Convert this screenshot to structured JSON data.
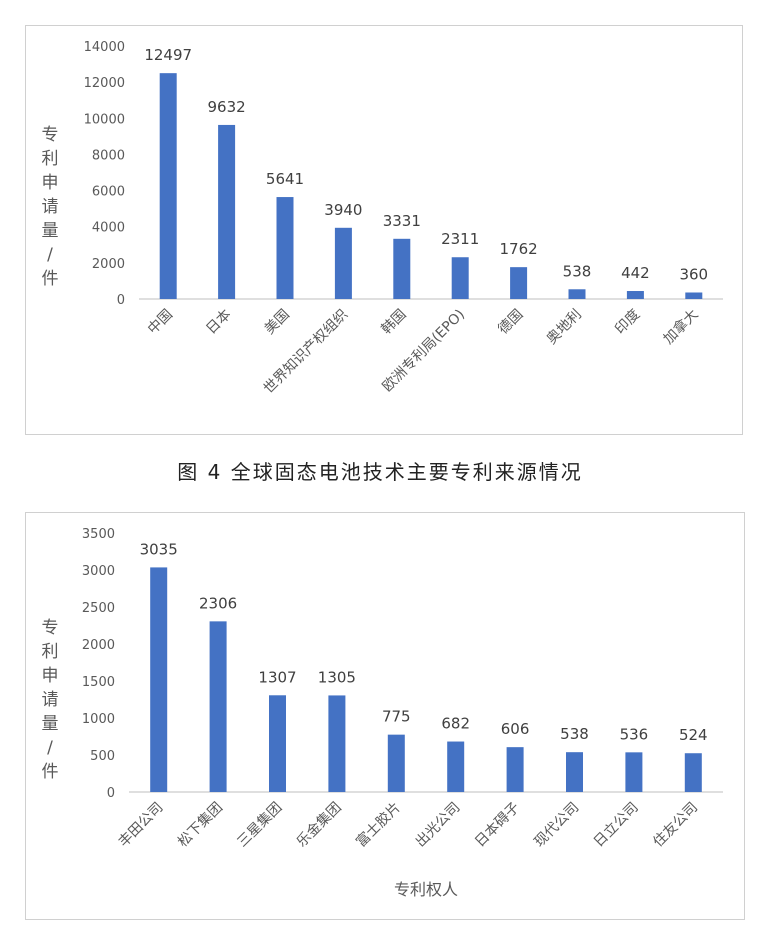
{
  "caption": "图 4 全球固态电池技术主要专利来源情况",
  "colors": {
    "bar": "#4472C4",
    "axis": "#bfbfbf",
    "text": "#595959"
  },
  "chart_data": [
    {
      "type": "bar",
      "title": "",
      "xlabel": "",
      "ylabel": "专利申请量/件",
      "ylim": [
        0,
        14000
      ],
      "yticks": [
        0,
        2000,
        4000,
        6000,
        8000,
        10000,
        12000,
        14000
      ],
      "grid": false,
      "categories": [
        "中国",
        "日本",
        "美国",
        "世界知识产权组织",
        "韩国",
        "欧洲专利局(EPO)",
        "德国",
        "奥地利",
        "印度",
        "加拿大"
      ],
      "values": [
        12497,
        9632,
        5641,
        3940,
        3331,
        2311,
        1762,
        538,
        442,
        360
      ]
    },
    {
      "type": "bar",
      "title": "",
      "xlabel": "专利权人",
      "ylabel": "专利申请量/件",
      "ylim": [
        0,
        3500
      ],
      "yticks": [
        0,
        500,
        1000,
        1500,
        2000,
        2500,
        3000,
        3500
      ],
      "grid": false,
      "categories": [
        "丰田公司",
        "松下集团",
        "三星集团",
        "乐金集团",
        "富士胶片",
        "出光公司",
        "日本碍子",
        "现代公司",
        "日立公司",
        "住友公司"
      ],
      "values": [
        3035,
        2306,
        1307,
        1305,
        775,
        682,
        606,
        538,
        536,
        524
      ]
    }
  ]
}
